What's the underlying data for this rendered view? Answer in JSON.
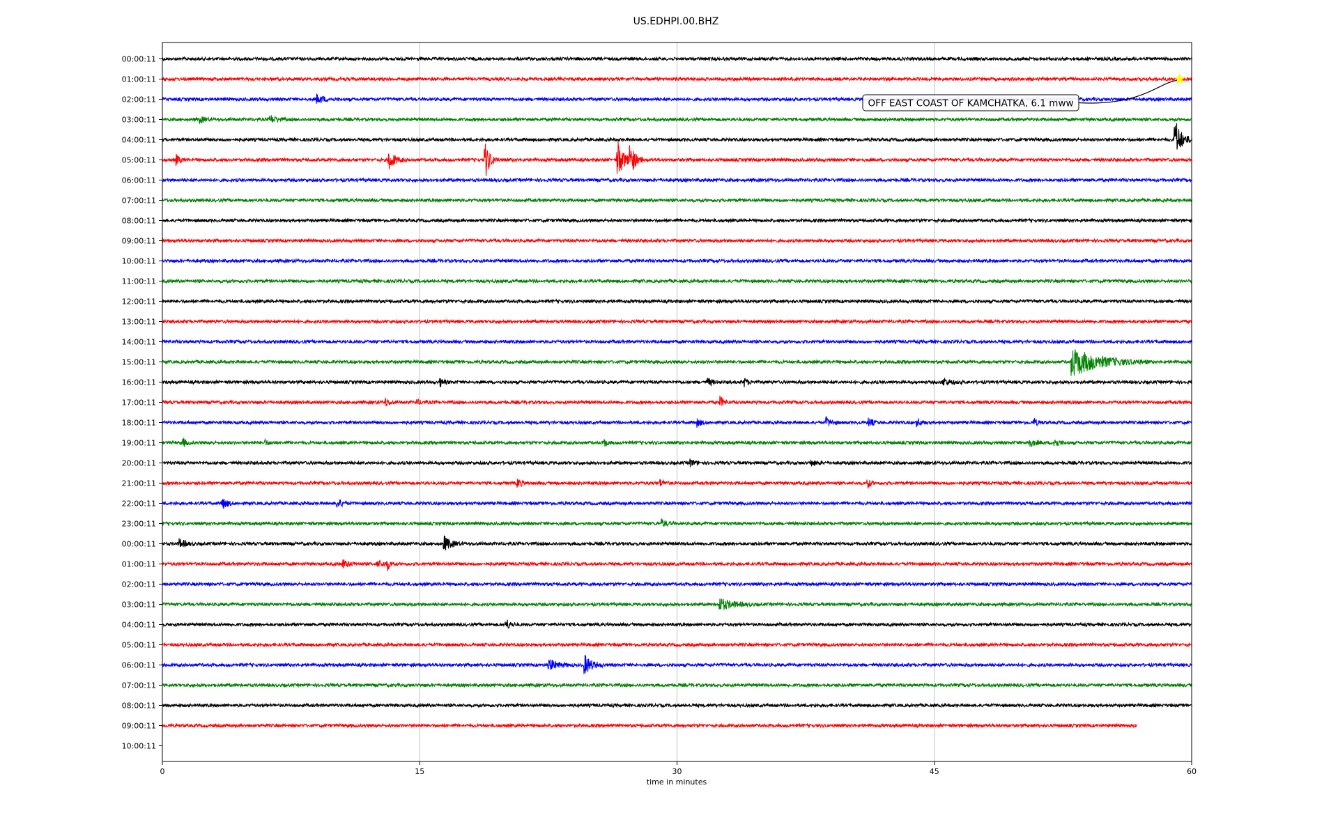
{
  "chart_data": {
    "type": "line",
    "title": "US.EDHPI.00.BHZ",
    "xlabel": "time in minutes",
    "xlim": [
      0,
      60
    ],
    "xticks": [
      0,
      15,
      30,
      45,
      60
    ],
    "grid": "vertical",
    "row_labels": [
      "00:00:11",
      "01:00:11",
      "02:00:11",
      "03:00:11",
      "04:00:11",
      "05:00:11",
      "06:00:11",
      "07:00:11",
      "08:00:11",
      "09:00:11",
      "10:00:11",
      "11:00:11",
      "12:00:11",
      "13:00:11",
      "14:00:11",
      "15:00:11",
      "16:00:11",
      "17:00:11",
      "18:00:11",
      "19:00:11",
      "20:00:11",
      "21:00:11",
      "22:00:11",
      "23:00:11",
      "00:00:11",
      "01:00:11",
      "02:00:11",
      "03:00:11",
      "04:00:11",
      "05:00:11",
      "06:00:11",
      "07:00:11",
      "08:00:11",
      "09:00:11",
      "10:00:11"
    ],
    "colors": [
      "#000000",
      "#ff0000",
      "#0000ff",
      "#008000"
    ],
    "last_trace_end_minute": 56.8,
    "events": [
      {
        "row": 2,
        "minute": 9.0,
        "amp": 0.35,
        "dur": 1.2
      },
      {
        "row": 3,
        "minute": 2.2,
        "amp": 0.25,
        "dur": 0.8
      },
      {
        "row": 3,
        "minute": 6.3,
        "amp": 0.3,
        "dur": 1.0
      },
      {
        "row": 4,
        "minute": 59.0,
        "amp": 1.8,
        "dur": 1.0
      },
      {
        "row": 5,
        "minute": 0.8,
        "amp": 0.4,
        "dur": 0.6
      },
      {
        "row": 5,
        "minute": 13.2,
        "amp": 0.8,
        "dur": 1.0
      },
      {
        "row": 5,
        "minute": 18.8,
        "amp": 1.5,
        "dur": 0.8
      },
      {
        "row": 5,
        "minute": 26.5,
        "amp": 1.8,
        "dur": 1.0
      },
      {
        "row": 5,
        "minute": 27.2,
        "amp": 1.8,
        "dur": 0.8
      },
      {
        "row": 15,
        "minute": 53.0,
        "amp": 1.2,
        "dur": 4.5
      },
      {
        "row": 16,
        "minute": 16.2,
        "amp": 0.3,
        "dur": 0.6
      },
      {
        "row": 16,
        "minute": 31.8,
        "amp": 0.3,
        "dur": 0.8
      },
      {
        "row": 16,
        "minute": 33.9,
        "amp": 0.35,
        "dur": 0.6
      },
      {
        "row": 16,
        "minute": 45.5,
        "amp": 0.3,
        "dur": 1.2
      },
      {
        "row": 17,
        "minute": 13.0,
        "amp": 0.3,
        "dur": 0.6
      },
      {
        "row": 17,
        "minute": 14.8,
        "amp": 0.2,
        "dur": 0.8
      },
      {
        "row": 17,
        "minute": 32.5,
        "amp": 0.45,
        "dur": 0.6
      },
      {
        "row": 18,
        "minute": 31.2,
        "amp": 0.3,
        "dur": 0.6
      },
      {
        "row": 18,
        "minute": 38.7,
        "amp": 0.35,
        "dur": 0.8
      },
      {
        "row": 18,
        "minute": 41.2,
        "amp": 0.35,
        "dur": 0.6
      },
      {
        "row": 18,
        "minute": 44.0,
        "amp": 0.35,
        "dur": 0.6
      },
      {
        "row": 18,
        "minute": 50.8,
        "amp": 0.3,
        "dur": 0.6
      },
      {
        "row": 19,
        "minute": 1.2,
        "amp": 0.3,
        "dur": 0.6
      },
      {
        "row": 19,
        "minute": 5.9,
        "amp": 0.3,
        "dur": 0.6
      },
      {
        "row": 19,
        "minute": 25.8,
        "amp": 0.3,
        "dur": 0.4
      },
      {
        "row": 19,
        "minute": 50.5,
        "amp": 0.35,
        "dur": 1.0
      },
      {
        "row": 19,
        "minute": 52.0,
        "amp": 0.45,
        "dur": 0.6
      },
      {
        "row": 20,
        "minute": 30.8,
        "amp": 0.25,
        "dur": 0.8
      },
      {
        "row": 20,
        "minute": 37.8,
        "amp": 0.25,
        "dur": 0.8
      },
      {
        "row": 21,
        "minute": 20.7,
        "amp": 0.4,
        "dur": 0.6
      },
      {
        "row": 21,
        "minute": 29.0,
        "amp": 0.25,
        "dur": 0.8
      },
      {
        "row": 21,
        "minute": 41.1,
        "amp": 0.45,
        "dur": 0.4
      },
      {
        "row": 22,
        "minute": 3.5,
        "amp": 0.45,
        "dur": 0.8
      },
      {
        "row": 22,
        "minute": 10.2,
        "amp": 0.35,
        "dur": 0.8
      },
      {
        "row": 23,
        "minute": 29.1,
        "amp": 0.3,
        "dur": 0.8
      },
      {
        "row": 24,
        "minute": 1.0,
        "amp": 0.35,
        "dur": 1.0
      },
      {
        "row": 24,
        "minute": 16.4,
        "amp": 0.6,
        "dur": 1.2
      },
      {
        "row": 25,
        "minute": 10.5,
        "amp": 0.35,
        "dur": 1.0
      },
      {
        "row": 25,
        "minute": 12.5,
        "amp": 0.3,
        "dur": 1.0
      },
      {
        "row": 25,
        "minute": 13.1,
        "amp": 0.55,
        "dur": 0.4
      },
      {
        "row": 27,
        "minute": 32.5,
        "amp": 0.5,
        "dur": 2.0
      },
      {
        "row": 28,
        "minute": 20.0,
        "amp": 0.55,
        "dur": 0.6
      },
      {
        "row": 30,
        "minute": 22.5,
        "amp": 0.45,
        "dur": 1.5
      },
      {
        "row": 30,
        "minute": 24.6,
        "amp": 0.8,
        "dur": 1.2
      }
    ],
    "marker": {
      "row": 1,
      "minute": 59.3,
      "color": "#ffff00"
    },
    "annotation": {
      "text": "OFF EAST COAST OF KAMCHATKA, 6.1 mww"
    }
  }
}
